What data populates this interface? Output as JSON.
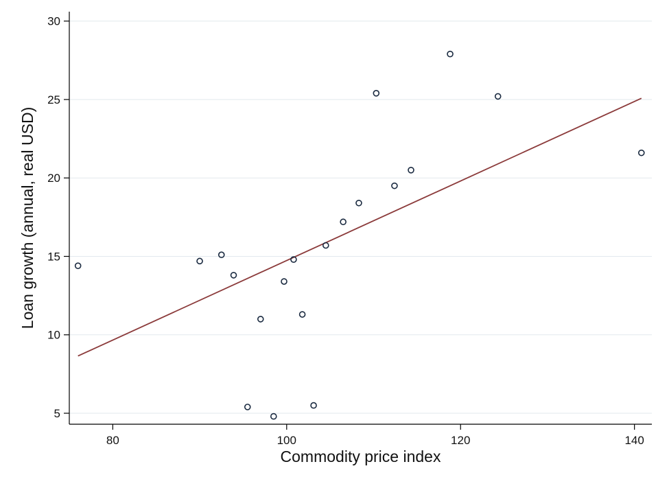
{
  "chart_data": {
    "type": "scatter",
    "xlabel": "Commodity price index",
    "ylabel": "Loan growth (annual, real USD)",
    "xlim": [
      75,
      142
    ],
    "ylim": [
      4.3,
      30.6
    ],
    "xticks": [
      80,
      100,
      120,
      140
    ],
    "yticks": [
      5,
      10,
      15,
      20,
      25,
      30
    ],
    "grid": "horizontal",
    "legend": "none",
    "points": [
      {
        "x": 76.0,
        "y": 14.4
      },
      {
        "x": 90.0,
        "y": 14.7
      },
      {
        "x": 92.5,
        "y": 15.1
      },
      {
        "x": 93.9,
        "y": 13.8
      },
      {
        "x": 95.5,
        "y": 5.4
      },
      {
        "x": 97.0,
        "y": 11.0
      },
      {
        "x": 98.5,
        "y": 4.8
      },
      {
        "x": 99.7,
        "y": 13.4
      },
      {
        "x": 100.8,
        "y": 14.8
      },
      {
        "x": 101.8,
        "y": 11.3
      },
      {
        "x": 103.1,
        "y": 5.5
      },
      {
        "x": 104.5,
        "y": 15.7
      },
      {
        "x": 106.5,
        "y": 17.2
      },
      {
        "x": 108.3,
        "y": 18.4
      },
      {
        "x": 110.3,
        "y": 25.4
      },
      {
        "x": 112.4,
        "y": 19.5
      },
      {
        "x": 114.3,
        "y": 20.5
      },
      {
        "x": 118.8,
        "y": 27.9
      },
      {
        "x": 124.3,
        "y": 25.2
      },
      {
        "x": 140.8,
        "y": 21.6
      }
    ],
    "fit_line": {
      "x": [
        76.0,
        140.8
      ],
      "y": [
        8.65,
        25.08
      ]
    },
    "colors": {
      "points": "#1a2a40",
      "fit_line": "#8b3a3a",
      "grid": "#e2e9ee",
      "axis": "#000000"
    }
  }
}
